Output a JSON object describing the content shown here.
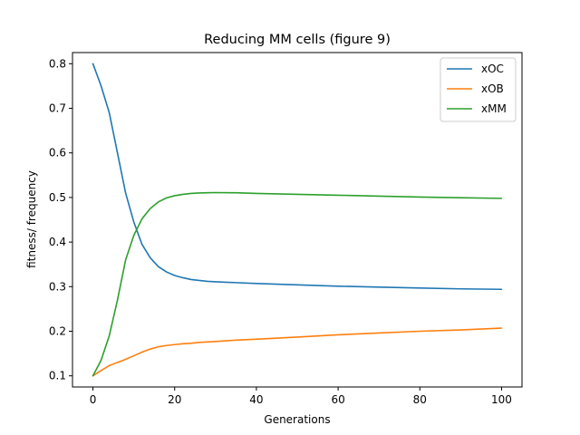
{
  "chart_data": {
    "type": "line",
    "title": "Reducing MM cells (figure 9)",
    "xlabel": "Generations",
    "ylabel": "fitness/ frequency",
    "xlim": [
      -5,
      105
    ],
    "ylim": [
      0.075,
      0.825
    ],
    "xticks": [
      0,
      20,
      40,
      60,
      80,
      100
    ],
    "yticks": [
      0.1,
      0.2,
      0.3,
      0.4,
      0.5,
      0.6,
      0.7,
      0.8
    ],
    "legend_position": "top-right",
    "grid": false,
    "series": [
      {
        "name": "xOC",
        "color": "#1f77b4",
        "x": [
          0,
          2,
          4,
          6,
          8,
          10,
          12,
          14,
          16,
          18,
          20,
          22,
          24,
          26,
          28,
          30,
          35,
          40,
          50,
          60,
          70,
          80,
          90,
          100
        ],
        "y": [
          0.8,
          0.75,
          0.69,
          0.6,
          0.51,
          0.445,
          0.395,
          0.365,
          0.345,
          0.333,
          0.325,
          0.32,
          0.316,
          0.314,
          0.312,
          0.311,
          0.309,
          0.307,
          0.304,
          0.301,
          0.299,
          0.297,
          0.295,
          0.294
        ]
      },
      {
        "name": "xOB",
        "color": "#ff7f0e",
        "x": [
          0,
          2,
          4,
          6,
          8,
          10,
          12,
          14,
          16,
          18,
          20,
          22,
          24,
          26,
          28,
          30,
          35,
          40,
          50,
          60,
          70,
          80,
          90,
          100
        ],
        "y": [
          0.1,
          0.112,
          0.123,
          0.13,
          0.137,
          0.145,
          0.153,
          0.16,
          0.165,
          0.168,
          0.17,
          0.172,
          0.173,
          0.175,
          0.176,
          0.177,
          0.18,
          0.182,
          0.187,
          0.192,
          0.196,
          0.2,
          0.203,
          0.207
        ]
      },
      {
        "name": "xMM",
        "color": "#2ca02c",
        "x": [
          0,
          2,
          4,
          6,
          8,
          10,
          12,
          14,
          16,
          18,
          20,
          22,
          24,
          26,
          28,
          30,
          35,
          40,
          50,
          60,
          70,
          80,
          90,
          100
        ],
        "y": [
          0.1,
          0.135,
          0.19,
          0.27,
          0.36,
          0.415,
          0.452,
          0.475,
          0.49,
          0.499,
          0.504,
          0.507,
          0.509,
          0.51,
          0.5105,
          0.511,
          0.5105,
          0.509,
          0.507,
          0.505,
          0.503,
          0.501,
          0.4995,
          0.498
        ]
      }
    ]
  }
}
